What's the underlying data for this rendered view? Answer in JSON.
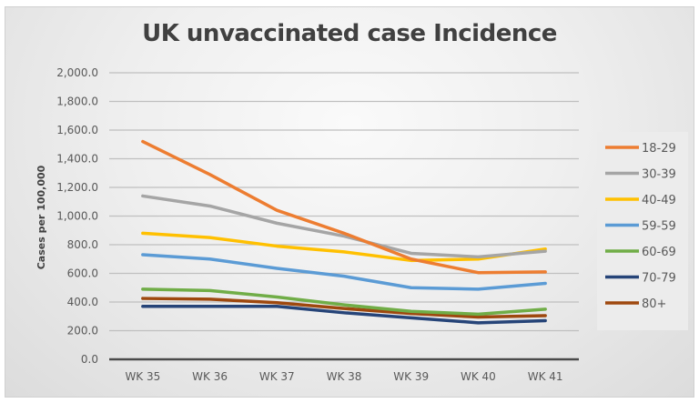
{
  "chart_data": {
    "type": "line",
    "title": "UK unvaccinated case Incidence",
    "xlabel": "",
    "ylabel": "Cases per 100,000",
    "categories": [
      "WK 35",
      "WK 36",
      "WK 37",
      "WK 38",
      "WK 39",
      "WK 40",
      "WK 41"
    ],
    "ylim": [
      0,
      2000
    ],
    "yticks": [
      0,
      200,
      400,
      600,
      800,
      1000,
      1200,
      1400,
      1600,
      1800,
      2000
    ],
    "ytick_labels": [
      "0.0",
      "200.0",
      "400.0",
      "600.0",
      "800.0",
      "1,000.0",
      "1,200.0",
      "1,400.0",
      "1,600.0",
      "1,800.0",
      "2,000.0"
    ],
    "grid": true,
    "legend_position": "right",
    "series": [
      {
        "name": "18-29",
        "color": "#ed7d31",
        "values": [
          1520,
          1290,
          1040,
          880,
          700,
          605,
          610
        ]
      },
      {
        "name": "30-39",
        "color": "#a5a5a5",
        "values": [
          1140,
          1070,
          950,
          860,
          740,
          715,
          755
        ]
      },
      {
        "name": "40-49",
        "color": "#ffc000",
        "values": [
          880,
          850,
          790,
          750,
          690,
          700,
          770
        ]
      },
      {
        "name": "59-59",
        "color": "#5b9bd5",
        "values": [
          730,
          700,
          635,
          580,
          500,
          490,
          530
        ]
      },
      {
        "name": "60-69",
        "color": "#70ad47",
        "values": [
          490,
          480,
          435,
          380,
          335,
          315,
          350
        ]
      },
      {
        "name": "70-79",
        "color": "#264478",
        "values": [
          370,
          370,
          370,
          325,
          290,
          255,
          270
        ]
      },
      {
        "name": "80+",
        "color": "#9e480e",
        "values": [
          425,
          420,
          395,
          355,
          320,
          295,
          305
        ]
      }
    ]
  }
}
